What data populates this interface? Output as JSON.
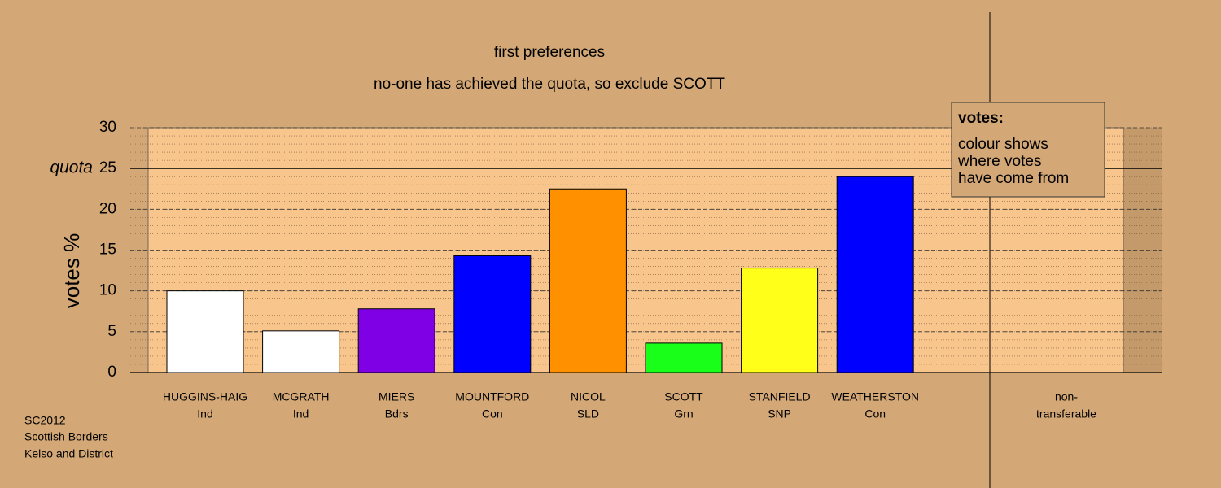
{
  "chart_data": {
    "type": "bar",
    "title": "first preferences",
    "subtitle": "no-one has achieved the quota, so exclude SCOTT",
    "y_label": "votes %",
    "categories": [
      "HUGGINS-HAIG",
      "MCGRATH",
      "MIERS",
      "MOUNTFORD",
      "NICOL",
      "SCOTT",
      "STANFIELD",
      "WEATHERSTON",
      "non-"
    ],
    "parties": [
      "Ind",
      "Ind",
      "Bdrs",
      "Con",
      "SLD",
      "Grn",
      "SNP",
      "Con",
      "transferable"
    ],
    "values": [
      10.0,
      5.1,
      7.8,
      14.3,
      22.5,
      3.6,
      12.8,
      24.0,
      null
    ],
    "colors": [
      "#ffffff",
      "#ffffff",
      "#8000e6",
      "#0000ff",
      "#ff9000",
      "#1aff1a",
      "#ffff1a",
      "#0000ff",
      null
    ],
    "ylim": [
      0,
      30
    ],
    "yticks": [
      0,
      5,
      10,
      15,
      20,
      30
    ],
    "quota": {
      "value": 25,
      "label": "quota",
      "tick": "25"
    },
    "grid": true,
    "legend": {
      "title": "votes:",
      "lines": [
        "colour shows",
        "where votes",
        "have come from"
      ]
    },
    "footer": [
      "SC2012",
      "Scottish Borders",
      "Kelso and District"
    ]
  }
}
